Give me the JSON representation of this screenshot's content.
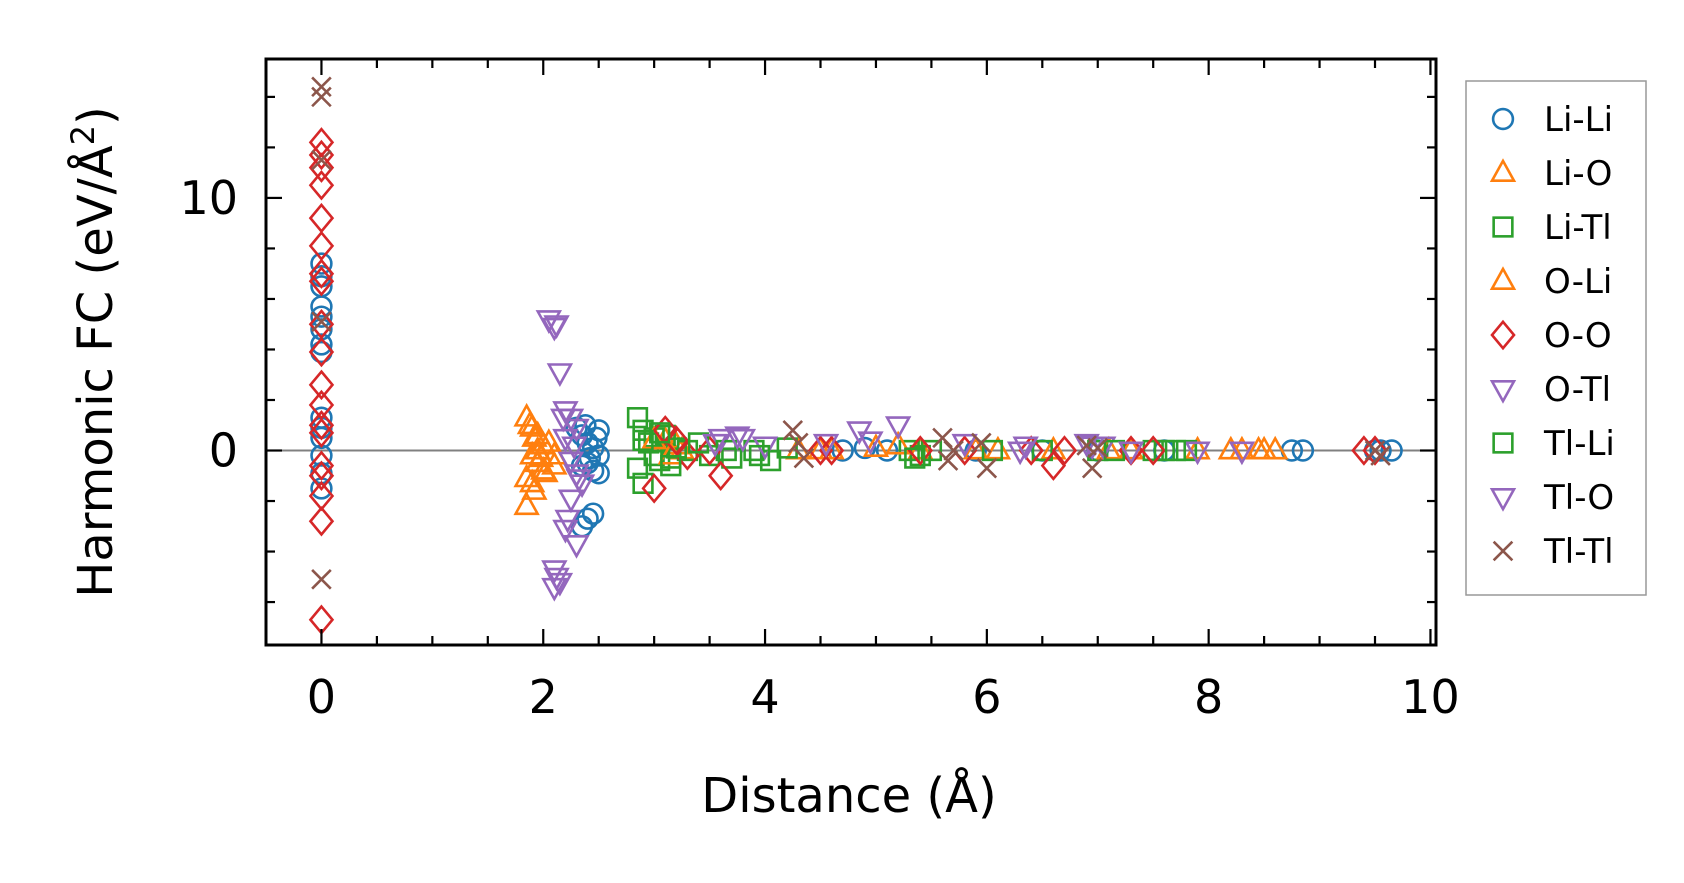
{
  "chart_data": {
    "type": "scatter",
    "title": "",
    "xlabel": "Distance (Å)",
    "ylabel_main": "Harmonic FC (eV/Å",
    "ylabel_sup": "2",
    "ylabel_close": ")",
    "xlim": [
      -0.5,
      10.05
    ],
    "ylim": [
      -7.7,
      15.5
    ],
    "x_ticks": [
      0,
      2,
      4,
      6,
      8,
      10
    ],
    "x_tick_labels": [
      "0",
      "2",
      "4",
      "6",
      "8",
      "10"
    ],
    "y_ticks": [
      0,
      10
    ],
    "y_tick_labels": [
      "0",
      "10"
    ],
    "zero_line": true,
    "grid": false,
    "legend_position": "right, outside plot",
    "series": [
      {
        "name": "Li-Li",
        "marker": "circle",
        "color": "#1f77b4",
        "points": [
          [
            0,
            7.4
          ],
          [
            0,
            6.9
          ],
          [
            0,
            6.5
          ],
          [
            0,
            5.7
          ],
          [
            0,
            5.3
          ],
          [
            0,
            4.8
          ],
          [
            0,
            4.2
          ],
          [
            0,
            3.9
          ],
          [
            0,
            1.3
          ],
          [
            0,
            0.9
          ],
          [
            0,
            0.5
          ],
          [
            0,
            -0.2
          ],
          [
            0,
            -0.9
          ],
          [
            0,
            -1.5
          ],
          [
            2.35,
            -3.0
          ],
          [
            2.4,
            -2.7
          ],
          [
            2.45,
            -2.5
          ],
          [
            2.3,
            0.9
          ],
          [
            2.35,
            0.6
          ],
          [
            2.4,
            0.3
          ],
          [
            2.45,
            0.1
          ],
          [
            2.5,
            -0.2
          ],
          [
            2.4,
            -0.5
          ],
          [
            2.45,
            -0.8
          ],
          [
            2.5,
            0.8
          ],
          [
            2.38,
            1.0
          ],
          [
            2.42,
            -0.3
          ],
          [
            2.48,
            0.5
          ],
          [
            2.35,
            -0.6
          ],
          [
            2.5,
            -0.9
          ],
          [
            4.7,
            0.0
          ],
          [
            4.9,
            0.1
          ],
          [
            5.1,
            0.0
          ],
          [
            5.9,
            0.0
          ],
          [
            6.5,
            0.0
          ],
          [
            7.0,
            0.0
          ],
          [
            7.6,
            0.0
          ],
          [
            8.75,
            0.0
          ],
          [
            8.85,
            0.0
          ],
          [
            9.5,
            0.0
          ],
          [
            9.55,
            0.0
          ],
          [
            9.65,
            0.0
          ]
        ]
      },
      {
        "name": "Li-O",
        "marker": "triangle-up",
        "color": "#ff7f0e",
        "points": [
          [
            1.85,
            1.3
          ],
          [
            1.9,
            0.9
          ],
          [
            1.95,
            0.6
          ],
          [
            2.0,
            0.2
          ],
          [
            1.9,
            -0.2
          ],
          [
            1.95,
            -0.5
          ],
          [
            2.0,
            -0.8
          ],
          [
            1.85,
            -1.1
          ],
          [
            1.9,
            -1.3
          ],
          [
            1.85,
            -2.2
          ],
          [
            2.05,
            0.3
          ],
          [
            2.1,
            -0.2
          ],
          [
            1.95,
            0.0
          ],
          [
            2.1,
            -0.6
          ],
          [
            3.1,
            0.4
          ],
          [
            3.2,
            0.2
          ],
          [
            3.25,
            0.0
          ],
          [
            4.3,
            0.0
          ],
          [
            4.6,
            0.0
          ],
          [
            5.0,
            0.1
          ],
          [
            5.4,
            0.0
          ],
          [
            5.9,
            0.0
          ],
          [
            6.6,
            0.0
          ],
          [
            7.3,
            0.0
          ],
          [
            7.9,
            0.0
          ],
          [
            8.2,
            0.0
          ],
          [
            8.45,
            0.0
          ],
          [
            8.6,
            0.0
          ]
        ]
      },
      {
        "name": "Li-Tl",
        "marker": "square",
        "color": "#2ca02c",
        "points": [
          [
            2.85,
            1.3
          ],
          [
            2.9,
            0.8
          ],
          [
            2.95,
            0.3
          ],
          [
            3.0,
            -0.2
          ],
          [
            2.85,
            -0.7
          ],
          [
            2.9,
            -1.3
          ],
          [
            3.0,
            0.5
          ],
          [
            3.05,
            -0.4
          ],
          [
            3.1,
            0.6
          ],
          [
            3.15,
            -0.3
          ],
          [
            3.2,
            0.1
          ],
          [
            3.3,
            0.0
          ],
          [
            3.5,
            -0.2
          ],
          [
            3.7,
            -0.3
          ],
          [
            3.9,
            0.0
          ],
          [
            4.05,
            -0.4
          ],
          [
            4.2,
            0.1
          ],
          [
            5.3,
            0.0
          ],
          [
            5.4,
            -0.2
          ],
          [
            5.5,
            0.0
          ],
          [
            6.5,
            0.0
          ],
          [
            7.0,
            0.0
          ],
          [
            7.5,
            0.0
          ],
          [
            7.6,
            0.0
          ],
          [
            7.8,
            0.0
          ]
        ]
      },
      {
        "name": "O-Li",
        "marker": "triangle-up",
        "color": "#ff7f0e",
        "points": [
          [
            1.88,
            1.0
          ],
          [
            1.92,
            0.5
          ],
          [
            1.98,
            -0.3
          ],
          [
            2.02,
            -0.9
          ],
          [
            1.92,
            -1.6
          ],
          [
            3.0,
            0.4
          ],
          [
            3.15,
            -0.2
          ],
          [
            4.5,
            0.0
          ],
          [
            5.2,
            0.2
          ],
          [
            6.1,
            0.0
          ],
          [
            7.1,
            0.0
          ],
          [
            8.3,
            0.0
          ],
          [
            8.5,
            0.0
          ]
        ]
      },
      {
        "name": "O-O",
        "marker": "diamond",
        "color": "#d62728",
        "points": [
          [
            0,
            12.2
          ],
          [
            0,
            11.7
          ],
          [
            0,
            11.2
          ],
          [
            0,
            10.5
          ],
          [
            0,
            9.2
          ],
          [
            0,
            8.1
          ],
          [
            0,
            7.0
          ],
          [
            0,
            6.7
          ],
          [
            0,
            5.0
          ],
          [
            0,
            3.9
          ],
          [
            0,
            2.6
          ],
          [
            0,
            1.8
          ],
          [
            0,
            1.0
          ],
          [
            0,
            0.7
          ],
          [
            0,
            -0.6
          ],
          [
            0,
            -1.0
          ],
          [
            0,
            -1.8
          ],
          [
            0,
            -2.8
          ],
          [
            0,
            -6.7
          ],
          [
            3.0,
            -1.5
          ],
          [
            3.1,
            0.8
          ],
          [
            3.2,
            0.4
          ],
          [
            3.3,
            -0.2
          ],
          [
            3.5,
            0.0
          ],
          [
            3.6,
            -1.0
          ],
          [
            4.5,
            0.0
          ],
          [
            4.6,
            0.0
          ],
          [
            5.4,
            0.0
          ],
          [
            5.8,
            0.0
          ],
          [
            6.4,
            0.0
          ],
          [
            6.6,
            -0.6
          ],
          [
            6.7,
            0.0
          ],
          [
            7.3,
            0.0
          ],
          [
            7.5,
            0.0
          ],
          [
            9.4,
            0.0
          ],
          [
            9.5,
            0.0
          ]
        ]
      },
      {
        "name": "O-Tl",
        "marker": "triangle-down",
        "color": "#9467bd",
        "points": [
          [
            2.05,
            5.2
          ],
          [
            2.1,
            4.9
          ],
          [
            2.15,
            3.1
          ],
          [
            2.2,
            1.6
          ],
          [
            2.25,
            1.3
          ],
          [
            2.3,
            0.9
          ],
          [
            2.2,
            0.5
          ],
          [
            2.25,
            -0.4
          ],
          [
            2.3,
            -0.9
          ],
          [
            2.35,
            -1.3
          ],
          [
            2.25,
            -1.9
          ],
          [
            2.2,
            -3.1
          ],
          [
            2.3,
            -3.7
          ],
          [
            2.1,
            -4.7
          ],
          [
            2.15,
            -5.2
          ],
          [
            2.1,
            -5.4
          ],
          [
            3.6,
            0.5
          ],
          [
            3.8,
            0.5
          ],
          [
            4.0,
            0.2
          ],
          [
            4.85,
            0.8
          ],
          [
            5.2,
            1.0
          ],
          [
            5.8,
            0.3
          ],
          [
            6.3,
            0.0
          ],
          [
            6.9,
            0.3
          ],
          [
            7.05,
            0.2
          ],
          [
            7.9,
            0.0
          ],
          [
            8.3,
            0.0
          ]
        ]
      },
      {
        "name": "Tl-Li",
        "marker": "square",
        "color": "#2ca02c",
        "points": [
          [
            2.9,
            0.4
          ],
          [
            3.05,
            0.7
          ],
          [
            3.15,
            -0.6
          ],
          [
            3.4,
            0.3
          ],
          [
            3.65,
            0.0
          ],
          [
            3.95,
            -0.2
          ],
          [
            5.35,
            -0.3
          ],
          [
            6.05,
            0.0
          ],
          [
            7.15,
            0.0
          ],
          [
            7.7,
            0.0
          ]
        ]
      },
      {
        "name": "Tl-O",
        "marker": "triangle-down",
        "color": "#9467bd",
        "points": [
          [
            2.12,
            5.0
          ],
          [
            2.18,
            1.3
          ],
          [
            2.28,
            0.2
          ],
          [
            2.32,
            -1.1
          ],
          [
            2.22,
            -2.7
          ],
          [
            2.12,
            -5.0
          ],
          [
            3.55,
            0.3
          ],
          [
            3.75,
            0.6
          ],
          [
            4.55,
            0.3
          ],
          [
            4.95,
            0.4
          ],
          [
            6.35,
            0.2
          ],
          [
            6.95,
            0.2
          ],
          [
            7.3,
            0.0
          ]
        ]
      },
      {
        "name": "Tl-Tl",
        "marker": "x",
        "color": "#8c564b",
        "points": [
          [
            0,
            14.4
          ],
          [
            0,
            14.0
          ],
          [
            0,
            11.5
          ],
          [
            0,
            5.1
          ],
          [
            0,
            -5.1
          ],
          [
            4.25,
            0.8
          ],
          [
            4.3,
            0.3
          ],
          [
            4.35,
            -0.3
          ],
          [
            5.6,
            0.5
          ],
          [
            5.7,
            0.0
          ],
          [
            5.65,
            -0.4
          ],
          [
            5.95,
            0.3
          ],
          [
            6.0,
            -0.7
          ],
          [
            6.9,
            0.2
          ],
          [
            6.95,
            -0.7
          ],
          [
            7.0,
            0.1
          ],
          [
            9.5,
            0.0
          ],
          [
            9.55,
            -0.2
          ]
        ]
      }
    ]
  }
}
